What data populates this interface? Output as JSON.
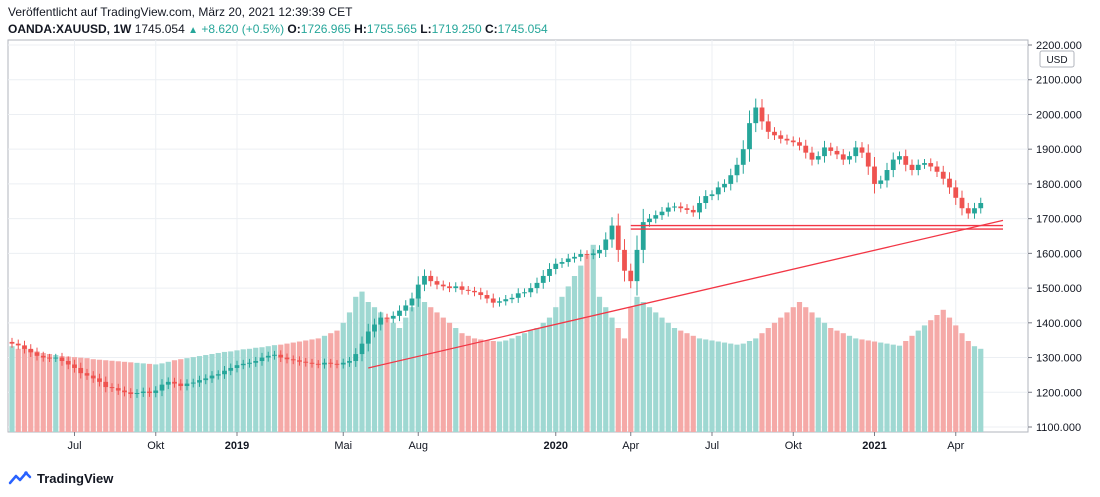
{
  "header": {
    "published": "Veröffentlicht auf TradingView.com, März 20, 2021 12:39:39 CET",
    "symbol": "OANDA:XAUUSD, 1W",
    "last": "1745.054",
    "change": "+8.620 (+0.5%)",
    "open_label": "O:",
    "open": "1726.965",
    "high_label": "H:",
    "high": "1755.565",
    "low_label": "L:",
    "low": "1719.250",
    "close_label": "C:",
    "close": "1745.054"
  },
  "footer": {
    "brand": "TradingView",
    "logo_icon": "tradingview-logo-icon"
  },
  "colors": {
    "up": "#26a69a",
    "down": "#ef5350",
    "vol_up": "#9fd8d2",
    "vol_down": "#f5a9a7",
    "line": "#f23645",
    "grid": "#eceff3"
  },
  "chart_data": {
    "type": "candlestick",
    "currency_label": "USD",
    "y_ticks": [
      "2200.000",
      "2100.000",
      "2000.000",
      "1900.000",
      "1800.000",
      "1700.000",
      "1600.000",
      "1500.000",
      "1400.000",
      "1300.000",
      "1200.000",
      "1100.000"
    ],
    "y_range": [
      1100,
      2200
    ],
    "x_ticks": [
      {
        "label": "Jul",
        "index": 10,
        "bold": false
      },
      {
        "label": "Okt",
        "index": 23,
        "bold": false
      },
      {
        "label": "2019",
        "index": 36,
        "bold": true
      },
      {
        "label": "Mai",
        "index": 53,
        "bold": false
      },
      {
        "label": "Aug",
        "index": 65,
        "bold": false
      },
      {
        "label": "2020",
        "index": 87,
        "bold": true
      },
      {
        "label": "Apr",
        "index": 99,
        "bold": false
      },
      {
        "label": "Jul",
        "index": 112,
        "bold": false
      },
      {
        "label": "Okt",
        "index": 125,
        "bold": false
      },
      {
        "label": "2021",
        "index": 138,
        "bold": true
      },
      {
        "label": "Apr",
        "index": 151,
        "bold": false
      }
    ],
    "closes": [
      1340,
      1335,
      1325,
      1315,
      1305,
      1300,
      1298,
      1300,
      1290,
      1280,
      1270,
      1255,
      1248,
      1240,
      1230,
      1215,
      1212,
      1205,
      1200,
      1195,
      1198,
      1202,
      1198,
      1205,
      1222,
      1230,
      1225,
      1218,
      1225,
      1228,
      1235,
      1240,
      1248,
      1252,
      1262,
      1270,
      1278,
      1282,
      1285,
      1290,
      1300,
      1305,
      1308,
      1300,
      1295,
      1292,
      1288,
      1285,
      1282,
      1280,
      1285,
      1282,
      1280,
      1285,
      1290,
      1310,
      1340,
      1375,
      1395,
      1415,
      1412,
      1420,
      1435,
      1450,
      1470,
      1510,
      1535,
      1520,
      1510,
      1505,
      1500,
      1505,
      1495,
      1492,
      1488,
      1480,
      1470,
      1458,
      1462,
      1468,
      1472,
      1485,
      1488,
      1500,
      1515,
      1535,
      1555,
      1570,
      1575,
      1585,
      1590,
      1598,
      1595,
      1600,
      1610,
      1640,
      1680,
      1610,
      1550,
      1520,
      1610,
      1690,
      1700,
      1710,
      1720,
      1732,
      1735,
      1730,
      1725,
      1718,
      1745,
      1765,
      1770,
      1790,
      1800,
      1825,
      1855,
      1900,
      1975,
      2020,
      1980,
      1950,
      1940,
      1930,
      1925,
      1920,
      1910,
      1890,
      1870,
      1880,
      1905,
      1895,
      1885,
      1870,
      1880,
      1905,
      1890,
      1850,
      1800,
      1810,
      1840,
      1870,
      1880,
      1855,
      1840,
      1855,
      1860,
      1850,
      1835,
      1815,
      1790,
      1760,
      1730,
      1715,
      1730,
      1745
    ],
    "volumes": [
      165,
      160,
      162,
      158,
      155,
      152,
      150,
      148,
      146,
      145,
      144,
      143,
      142,
      140,
      139,
      138,
      137,
      136,
      135,
      134,
      133,
      132,
      131,
      130,
      132,
      135,
      138,
      140,
      142,
      144,
      146,
      148,
      150,
      152,
      154,
      155,
      157,
      159,
      160,
      162,
      163,
      165,
      167,
      168,
      170,
      172,
      174,
      176,
      178,
      180,
      185,
      190,
      195,
      210,
      230,
      260,
      270,
      250,
      240,
      230,
      220,
      210,
      200,
      220,
      240,
      260,
      250,
      240,
      230,
      220,
      210,
      200,
      190,
      185,
      180,
      178,
      176,
      175,
      174,
      176,
      180,
      185,
      190,
      195,
      200,
      210,
      220,
      240,
      260,
      280,
      300,
      320,
      340,
      360,
      260,
      240,
      220,
      200,
      180,
      240,
      260,
      250,
      240,
      230,
      220,
      210,
      200,
      195,
      190,
      185,
      180,
      178,
      176,
      174,
      172,
      170,
      168,
      170,
      175,
      180,
      190,
      200,
      210,
      220,
      230,
      240,
      250,
      240,
      230,
      220,
      210,
      200,
      195,
      190,
      185,
      180,
      178,
      176,
      174,
      172,
      170,
      168,
      166,
      175,
      185,
      195,
      205,
      215,
      225,
      235,
      220,
      205,
      190,
      175,
      165,
      160
    ]
  }
}
